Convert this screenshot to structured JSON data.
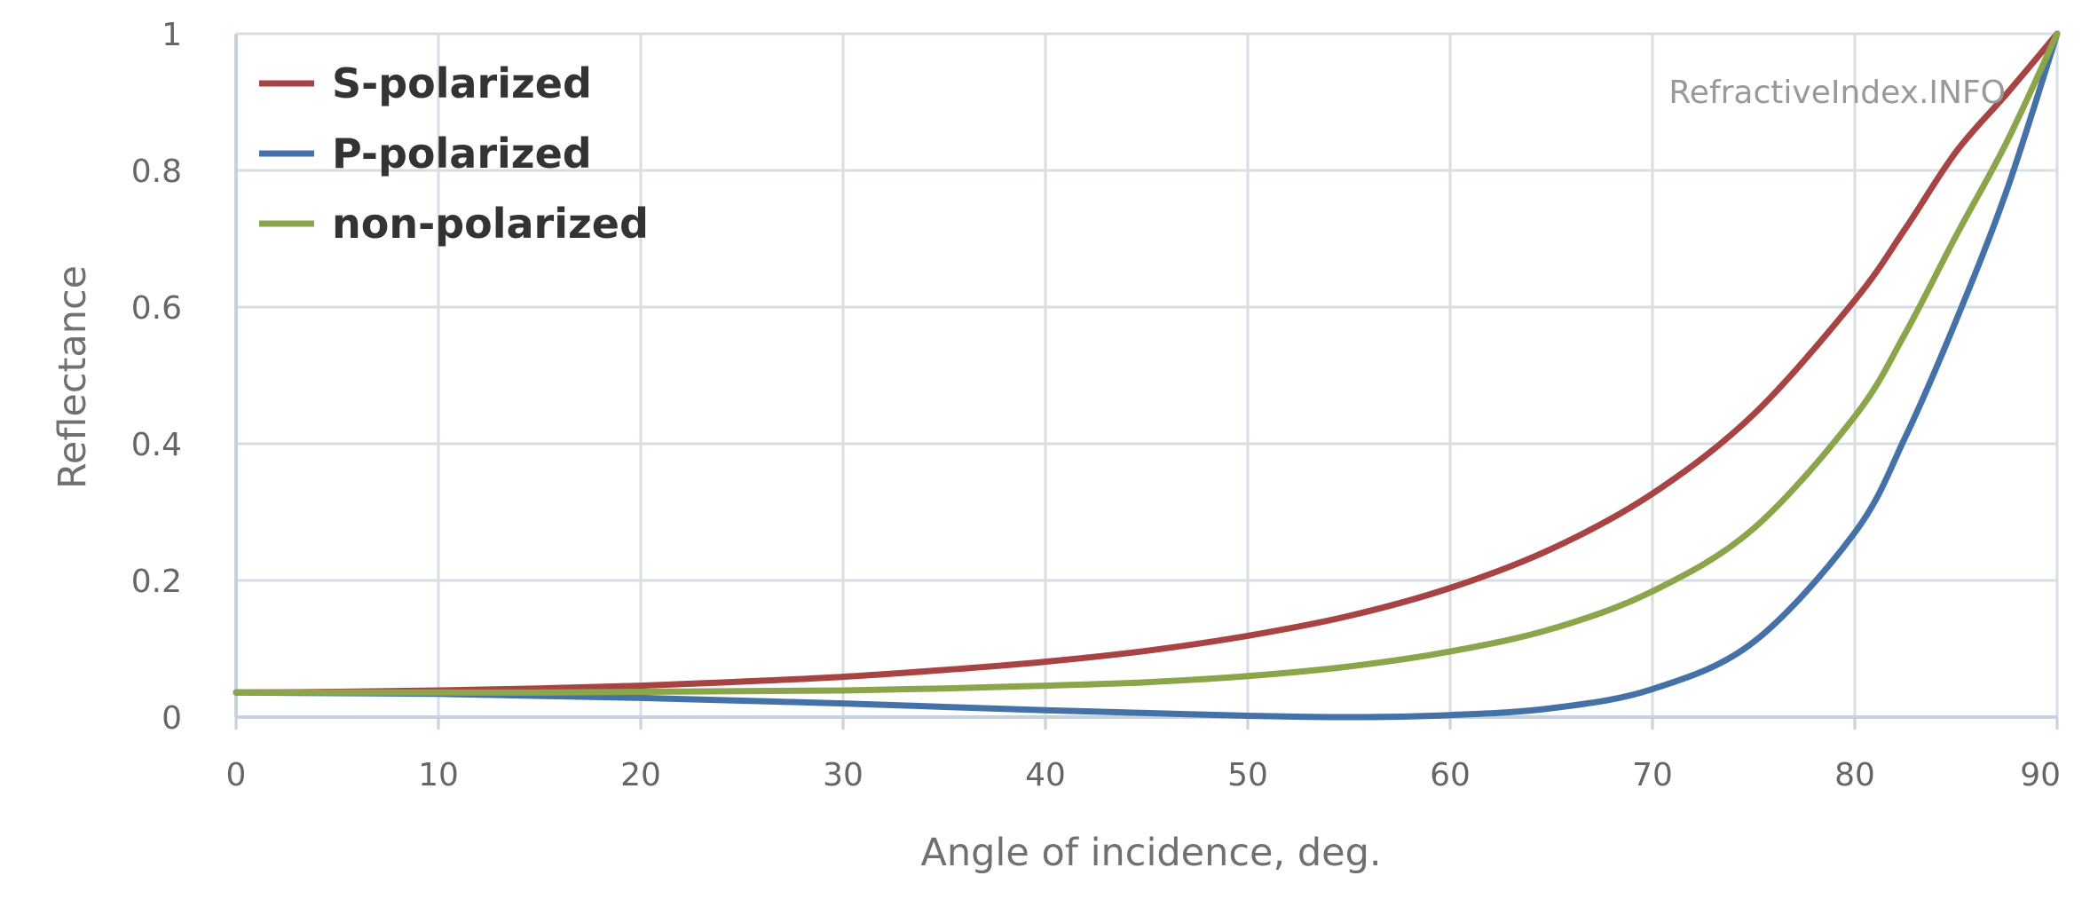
{
  "chart_data": {
    "type": "line",
    "title": "",
    "xlabel": "Angle of incidence, deg.",
    "ylabel": "Reflectance",
    "xlim": [
      0,
      90
    ],
    "ylim": [
      0,
      1
    ],
    "xticks": [
      0,
      10,
      20,
      30,
      40,
      50,
      60,
      70,
      80,
      90
    ],
    "yticks": [
      0,
      0.2,
      0.4,
      0.6,
      0.8,
      1
    ],
    "ytick_labels": [
      "0",
      "0.2",
      "0.4",
      "0.6",
      "0.8",
      "1"
    ],
    "grid": true,
    "legend_position": "top-left",
    "watermark": "RefractiveIndex.INFO",
    "x": [
      0,
      5,
      10,
      15,
      20,
      25,
      30,
      35,
      40,
      45,
      50,
      55,
      60,
      65,
      70,
      75,
      80,
      82.5,
      85,
      87.5,
      90
    ],
    "series": [
      {
        "name": "S-polarized",
        "color": "#a84343",
        "values": [
          0.036,
          0.037,
          0.039,
          0.042,
          0.046,
          0.052,
          0.059,
          0.069,
          0.081,
          0.097,
          0.119,
          0.148,
          0.189,
          0.246,
          0.327,
          0.443,
          0.61,
          0.715,
          0.827,
          0.912,
          1.0
        ]
      },
      {
        "name": "P-polarized",
        "color": "#4472a8",
        "values": [
          0.036,
          0.035,
          0.034,
          0.031,
          0.028,
          0.024,
          0.02,
          0.015,
          0.01,
          0.006,
          0.002,
          0.0,
          0.003,
          0.013,
          0.041,
          0.11,
          0.27,
          0.41,
          0.58,
          0.77,
          1.0
        ]
      },
      {
        "name": "non-polarized",
        "color": "#8aa54a",
        "values": [
          0.036,
          0.036,
          0.036,
          0.036,
          0.037,
          0.038,
          0.039,
          0.042,
          0.046,
          0.051,
          0.06,
          0.074,
          0.096,
          0.129,
          0.184,
          0.276,
          0.44,
          0.562,
          0.704,
          0.841,
          1.0
        ]
      }
    ]
  }
}
